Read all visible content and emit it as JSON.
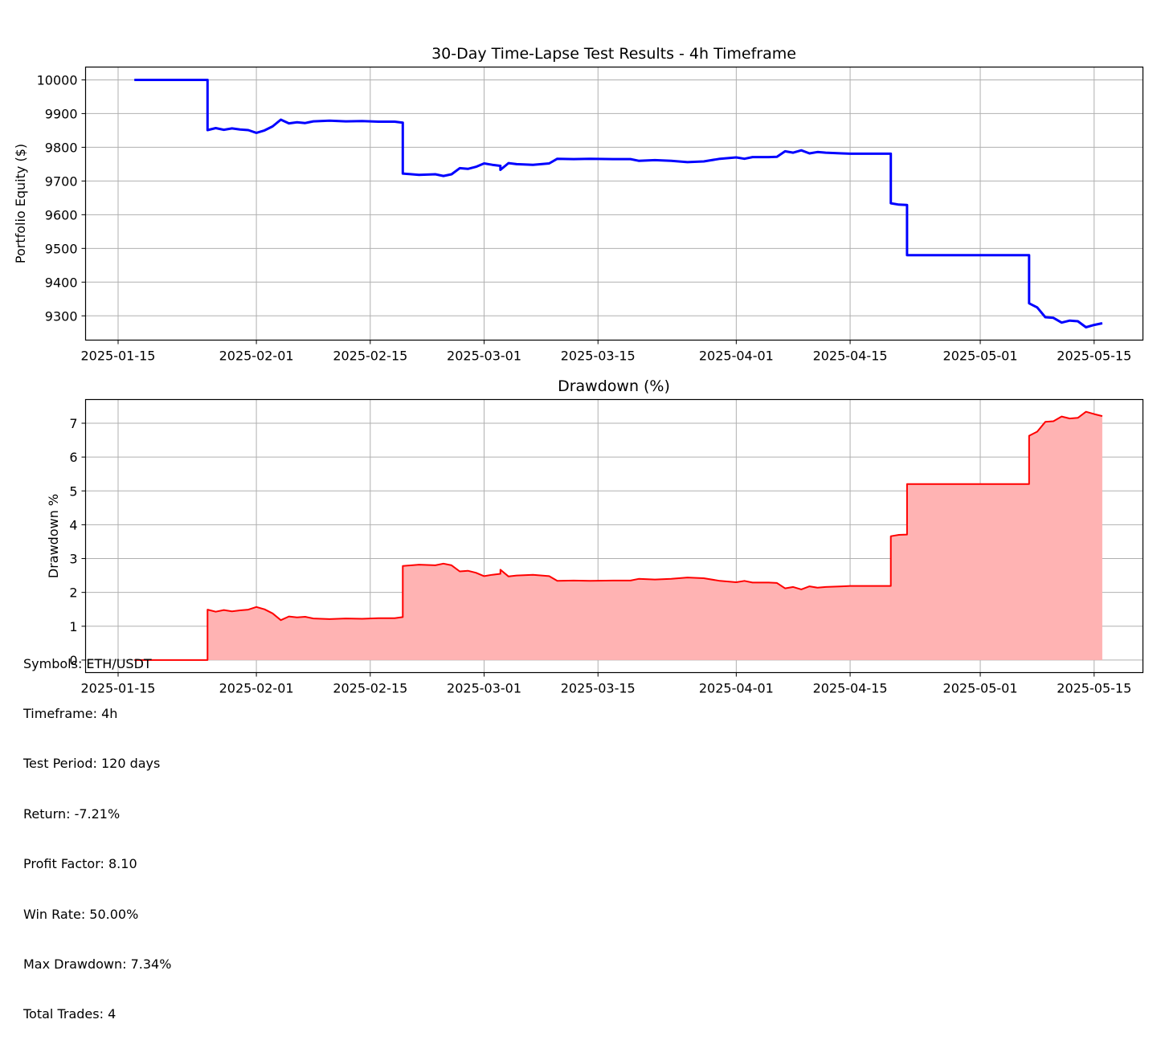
{
  "chart_data": [
    {
      "type": "line",
      "title": "30-Day Time-Lapse Test Results - 4h Timeframe",
      "xlabel": "",
      "ylabel": "Portfolio Equity ($)",
      "grid": true,
      "x_ticks": [
        "2025-01-15",
        "2025-02-01",
        "2025-02-15",
        "2025-03-01",
        "2025-03-15",
        "2025-04-01",
        "2025-04-15",
        "2025-05-01",
        "2025-05-15"
      ],
      "y_ticks": [
        9300,
        9400,
        9500,
        9600,
        9700,
        9800,
        9900,
        10000
      ],
      "xlim": [
        "2025-01-11",
        "2025-05-21"
      ],
      "ylim": [
        9228,
        10038
      ],
      "series": [
        {
          "color": "#0000ff",
          "points": [
            [
              "2025-01-17",
              10000
            ],
            [
              "2025-01-26",
              10000
            ],
            [
              "2025-01-26",
              9851
            ],
            [
              "2025-01-27",
              9857
            ],
            [
              "2025-01-28",
              9852
            ],
            [
              "2025-01-29",
              9856
            ],
            [
              "2025-01-30",
              9853
            ],
            [
              "2025-01-31",
              9851
            ],
            [
              "2025-02-01",
              9843
            ],
            [
              "2025-02-02",
              9850
            ],
            [
              "2025-02-03",
              9862
            ],
            [
              "2025-02-04",
              9882
            ],
            [
              "2025-02-05",
              9871
            ],
            [
              "2025-02-06",
              9874
            ],
            [
              "2025-02-07",
              9872
            ],
            [
              "2025-02-08",
              9877
            ],
            [
              "2025-02-10",
              9879
            ],
            [
              "2025-02-12",
              9877
            ],
            [
              "2025-02-14",
              9878
            ],
            [
              "2025-02-16",
              9876
            ],
            [
              "2025-02-18",
              9876
            ],
            [
              "2025-02-19",
              9873
            ],
            [
              "2025-02-19",
              9722
            ],
            [
              "2025-02-21",
              9718
            ],
            [
              "2025-02-23",
              9720
            ],
            [
              "2025-02-24",
              9715
            ],
            [
              "2025-02-25",
              9720
            ],
            [
              "2025-02-26",
              9738
            ],
            [
              "2025-02-27",
              9736
            ],
            [
              "2025-02-28",
              9742
            ],
            [
              "2025-03-01",
              9752
            ],
            [
              "2025-03-02",
              9748
            ],
            [
              "2025-03-03",
              9745
            ],
            [
              "2025-03-03",
              9733
            ],
            [
              "2025-03-04",
              9753
            ],
            [
              "2025-03-05",
              9750
            ],
            [
              "2025-03-07",
              9748
            ],
            [
              "2025-03-09",
              9752
            ],
            [
              "2025-03-10",
              9766
            ],
            [
              "2025-03-12",
              9765
            ],
            [
              "2025-03-14",
              9766
            ],
            [
              "2025-03-17",
              9765
            ],
            [
              "2025-03-19",
              9765
            ],
            [
              "2025-03-20",
              9760
            ],
            [
              "2025-03-22",
              9762
            ],
            [
              "2025-03-24",
              9760
            ],
            [
              "2025-03-26",
              9756
            ],
            [
              "2025-03-28",
              9758
            ],
            [
              "2025-03-30",
              9766
            ],
            [
              "2025-04-01",
              9770
            ],
            [
              "2025-04-02",
              9766
            ],
            [
              "2025-04-03",
              9771
            ],
            [
              "2025-04-05",
              9771
            ],
            [
              "2025-04-06",
              9772
            ],
            [
              "2025-04-07",
              9788
            ],
            [
              "2025-04-08",
              9784
            ],
            [
              "2025-04-09",
              9791
            ],
            [
              "2025-04-10",
              9782
            ],
            [
              "2025-04-11",
              9786
            ],
            [
              "2025-04-12",
              9784
            ],
            [
              "2025-04-14",
              9782
            ],
            [
              "2025-04-15",
              9781
            ],
            [
              "2025-04-20",
              9781
            ],
            [
              "2025-04-20",
              9634
            ],
            [
              "2025-04-21",
              9630
            ],
            [
              "2025-04-22",
              9629
            ],
            [
              "2025-04-22",
              9480
            ],
            [
              "2025-05-07",
              9480
            ],
            [
              "2025-05-07",
              9337
            ],
            [
              "2025-05-08",
              9325
            ],
            [
              "2025-05-09",
              9296
            ],
            [
              "2025-05-10",
              9294
            ],
            [
              "2025-05-11",
              9280
            ],
            [
              "2025-05-12",
              9286
            ],
            [
              "2025-05-13",
              9284
            ],
            [
              "2025-05-14",
              9266
            ],
            [
              "2025-05-15",
              9273
            ],
            [
              "2025-05-16",
              9278
            ]
          ]
        }
      ]
    },
    {
      "type": "area",
      "title": "Drawdown (%)",
      "xlabel": "",
      "ylabel": "Drawdown %",
      "grid": true,
      "x_ticks": [
        "2025-01-15",
        "2025-02-01",
        "2025-02-15",
        "2025-03-01",
        "2025-03-15",
        "2025-04-01",
        "2025-04-15",
        "2025-05-01",
        "2025-05-15"
      ],
      "y_ticks": [
        0,
        1,
        2,
        3,
        4,
        5,
        6,
        7
      ],
      "xlim": [
        "2025-01-11",
        "2025-05-21"
      ],
      "ylim": [
        -0.37,
        7.7
      ],
      "series": [
        {
          "color": "#ff0000",
          "fill": "#ffb3b3",
          "points": [
            [
              "2025-01-17",
              0
            ],
            [
              "2025-01-26",
              0
            ],
            [
              "2025-01-26",
              1.49
            ],
            [
              "2025-01-27",
              1.43
            ],
            [
              "2025-01-28",
              1.48
            ],
            [
              "2025-01-29",
              1.44
            ],
            [
              "2025-01-30",
              1.47
            ],
            [
              "2025-01-31",
              1.49
            ],
            [
              "2025-02-01",
              1.57
            ],
            [
              "2025-02-02",
              1.5
            ],
            [
              "2025-02-03",
              1.38
            ],
            [
              "2025-02-04",
              1.18
            ],
            [
              "2025-02-05",
              1.29
            ],
            [
              "2025-02-06",
              1.26
            ],
            [
              "2025-02-07",
              1.28
            ],
            [
              "2025-02-08",
              1.23
            ],
            [
              "2025-02-10",
              1.21
            ],
            [
              "2025-02-12",
              1.23
            ],
            [
              "2025-02-14",
              1.22
            ],
            [
              "2025-02-16",
              1.24
            ],
            [
              "2025-02-18",
              1.24
            ],
            [
              "2025-02-19",
              1.27
            ],
            [
              "2025-02-19",
              2.78
            ],
            [
              "2025-02-21",
              2.82
            ],
            [
              "2025-02-23",
              2.8
            ],
            [
              "2025-02-24",
              2.85
            ],
            [
              "2025-02-25",
              2.8
            ],
            [
              "2025-02-26",
              2.62
            ],
            [
              "2025-02-27",
              2.64
            ],
            [
              "2025-02-28",
              2.58
            ],
            [
              "2025-03-01",
              2.48
            ],
            [
              "2025-03-02",
              2.52
            ],
            [
              "2025-03-03",
              2.55
            ],
            [
              "2025-03-03",
              2.67
            ],
            [
              "2025-03-04",
              2.47
            ],
            [
              "2025-03-05",
              2.5
            ],
            [
              "2025-03-07",
              2.52
            ],
            [
              "2025-03-09",
              2.48
            ],
            [
              "2025-03-10",
              2.34
            ],
            [
              "2025-03-12",
              2.35
            ],
            [
              "2025-03-14",
              2.34
            ],
            [
              "2025-03-17",
              2.35
            ],
            [
              "2025-03-19",
              2.35
            ],
            [
              "2025-03-20",
              2.4
            ],
            [
              "2025-03-22",
              2.38
            ],
            [
              "2025-03-24",
              2.4
            ],
            [
              "2025-03-26",
              2.44
            ],
            [
              "2025-03-28",
              2.42
            ],
            [
              "2025-03-30",
              2.34
            ],
            [
              "2025-04-01",
              2.3
            ],
            [
              "2025-04-02",
              2.34
            ],
            [
              "2025-04-03",
              2.29
            ],
            [
              "2025-04-05",
              2.29
            ],
            [
              "2025-04-06",
              2.28
            ],
            [
              "2025-04-07",
              2.12
            ],
            [
              "2025-04-08",
              2.16
            ],
            [
              "2025-04-09",
              2.09
            ],
            [
              "2025-04-10",
              2.18
            ],
            [
              "2025-04-11",
              2.14
            ],
            [
              "2025-04-12",
              2.16
            ],
            [
              "2025-04-14",
              2.18
            ],
            [
              "2025-04-15",
              2.19
            ],
            [
              "2025-04-20",
              2.19
            ],
            [
              "2025-04-20",
              3.66
            ],
            [
              "2025-04-21",
              3.7
            ],
            [
              "2025-04-22",
              3.71
            ],
            [
              "2025-04-22",
              5.2
            ],
            [
              "2025-05-07",
              5.2
            ],
            [
              "2025-05-07",
              6.63
            ],
            [
              "2025-05-08",
              6.75
            ],
            [
              "2025-05-09",
              7.04
            ],
            [
              "2025-05-10",
              7.06
            ],
            [
              "2025-05-11",
              7.2
            ],
            [
              "2025-05-12",
              7.14
            ],
            [
              "2025-05-13",
              7.16
            ],
            [
              "2025-05-14",
              7.34
            ],
            [
              "2025-05-15",
              7.27
            ],
            [
              "2025-05-16",
              7.21
            ]
          ]
        }
      ]
    }
  ],
  "stats": [
    "Symbols: ETH/USDT",
    "Timeframe: 4h",
    "Test Period: 120 days",
    "Return: -7.21%",
    "Profit Factor: 8.10",
    "Win Rate: 50.00%",
    "Max Drawdown: 7.34%",
    "Total Trades: 4"
  ]
}
